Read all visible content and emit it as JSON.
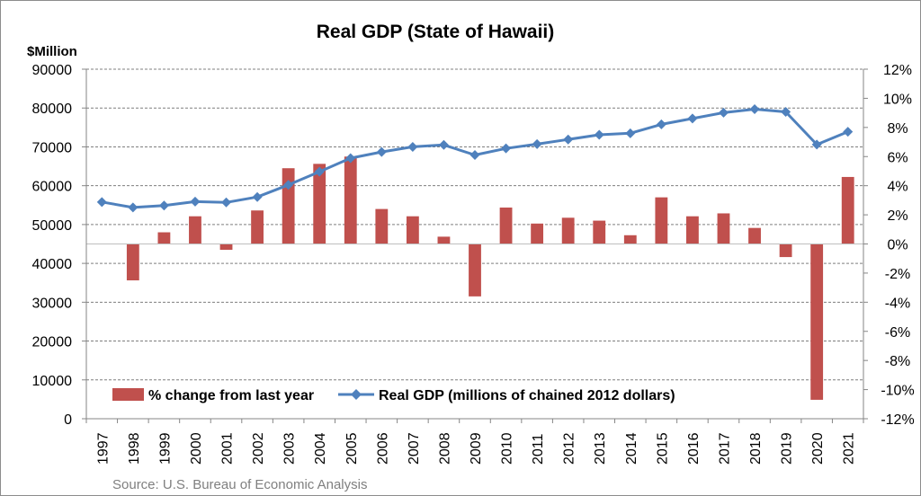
{
  "chart_data": {
    "type": "bar+line",
    "title": "Real GDP (State of Hawaii)",
    "left_axis_label": "$Million",
    "source": "Source: U.S. Bureau of Economic Analysis",
    "categories": [
      "1997",
      "1998",
      "1999",
      "2000",
      "2001",
      "2002",
      "2003",
      "2004",
      "2005",
      "2006",
      "2007",
      "2008",
      "2009",
      "2010",
      "2011",
      "2012",
      "2013",
      "2014",
      "2015",
      "2016",
      "2017",
      "2018",
      "2019",
      "2020",
      "2021"
    ],
    "left_axis": {
      "min": 0,
      "max": 90000,
      "step": 10000,
      "ticks": [
        "0",
        "10000",
        "20000",
        "30000",
        "40000",
        "50000",
        "60000",
        "70000",
        "80000",
        "90000"
      ]
    },
    "right_axis": {
      "min": -12,
      "max": 12,
      "step": 2,
      "ticks": [
        "-12%",
        "-10%",
        "-8%",
        "-6%",
        "-4%",
        "-2%",
        "0%",
        "2%",
        "4%",
        "6%",
        "8%",
        "10%",
        "12%"
      ]
    },
    "series": [
      {
        "name": "% change from last year",
        "type": "bar",
        "axis": "right",
        "color": "#c0504d",
        "values": [
          0,
          -2.5,
          0.8,
          1.9,
          -0.4,
          2.3,
          5.2,
          5.5,
          6.0,
          2.4,
          1.9,
          0.5,
          -3.6,
          2.5,
          1.4,
          1.8,
          1.6,
          0.6,
          3.2,
          1.9,
          2.1,
          1.1,
          -0.9,
          -10.7,
          4.6
        ]
      },
      {
        "name": "Real GDP (millions of chained 2012 dollars)",
        "type": "line",
        "axis": "left",
        "color": "#4f81bd",
        "values": [
          55800,
          54400,
          54900,
          55900,
          55700,
          57100,
          60200,
          63600,
          67100,
          68700,
          70000,
          70500,
          67900,
          69600,
          70700,
          71900,
          73100,
          73500,
          75800,
          77300,
          78800,
          79700,
          79000,
          70600,
          73900
        ]
      }
    ]
  }
}
